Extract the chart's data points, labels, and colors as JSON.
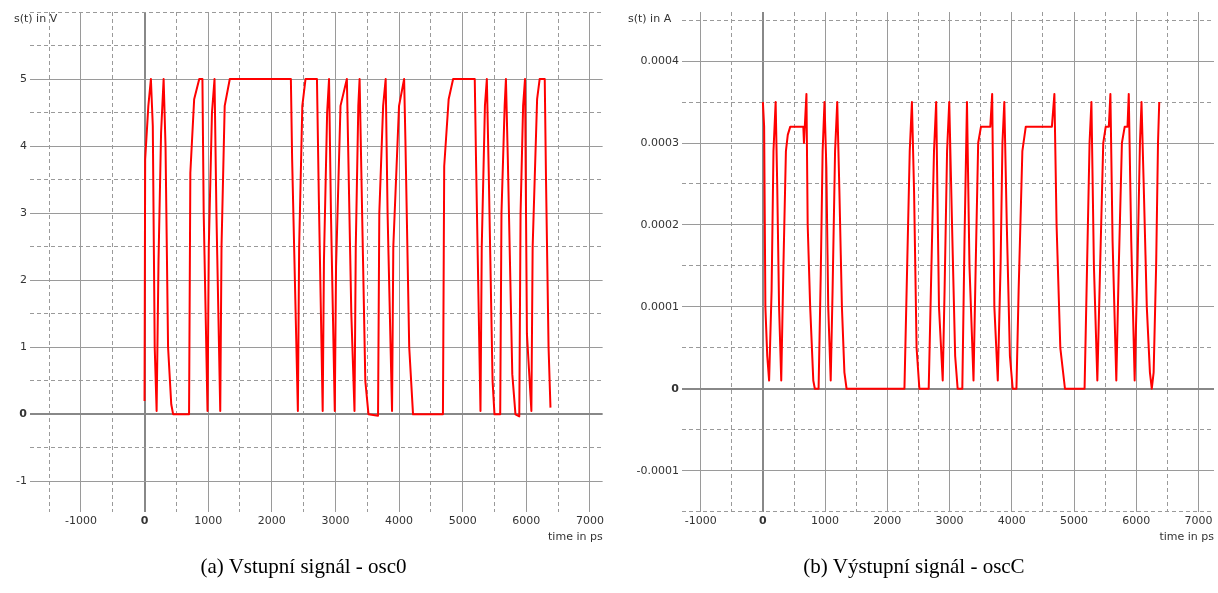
{
  "chart_data": [
    {
      "type": "line",
      "ylabel": "s(t) in V",
      "xlabel": "time in ps",
      "annotations": [
        "(a) Vstupní signál - osc0"
      ],
      "grid": true,
      "legend": false,
      "marker": "none",
      "line_style": "solid",
      "xlim": [
        -1800,
        7200
      ],
      "xticks": [
        {
          "value": -1500,
          "label": null
        },
        -1000,
        {
          "value": -500,
          "label": null
        },
        0,
        {
          "value": 500,
          "label": null
        },
        1000,
        {
          "value": 1500,
          "label": null
        },
        2000,
        {
          "value": 2500,
          "label": null
        },
        3000,
        {
          "value": 3500,
          "label": null
        },
        4000,
        {
          "value": 4500,
          "label": null
        },
        5000,
        {
          "value": 5500,
          "label": null
        },
        6000,
        {
          "value": 6500,
          "label": null
        },
        7000
      ],
      "ylim": [
        -1.45,
        6
      ],
      "yticks": [
        -1,
        {
          "value": -0.5,
          "label": null
        },
        0,
        {
          "value": 0.5,
          "label": null
        },
        1,
        {
          "value": 1.5,
          "label": null
        },
        2,
        {
          "value": 2.5,
          "label": null
        },
        3,
        {
          "value": 3.5,
          "label": null
        },
        4,
        {
          "value": 4.5,
          "label": null
        },
        5,
        {
          "value": 5.5,
          "label": null
        },
        {
          "value": 6,
          "label": null
        }
      ],
      "series": [
        {
          "color": "#ff0000",
          "x": [
            0,
            10,
            60,
            100,
            130,
            160,
            190,
            220,
            260,
            300,
            330,
            370,
            420,
            450,
            700,
            720,
            780,
            860,
            910,
            930,
            990,
            1010,
            1060,
            1100,
            1130,
            1190,
            1210,
            1260,
            1340,
            2300,
            2320,
            2410,
            2430,
            2480,
            2530,
            2710,
            2740,
            2800,
            2820,
            2870,
            2900,
            2930,
            2990,
            3010,
            3080,
            3180,
            3200,
            3250,
            3300,
            3320,
            3360,
            3380,
            3410,
            3470,
            3520,
            3670,
            3690,
            3750,
            3790,
            3820,
            3890,
            3910,
            4000,
            4080,
            4100,
            4160,
            4220,
            4690,
            4710,
            4780,
            4850,
            5190,
            5210,
            5280,
            5300,
            5350,
            5380,
            5410,
            5470,
            5500,
            5590,
            5610,
            5660,
            5680,
            5710,
            5780,
            5830,
            5890,
            5910,
            5950,
            5980,
            6010,
            6080,
            6100,
            6170,
            6210,
            6290,
            6310,
            6350,
            6380
          ],
          "values": [
            0.2,
            3.8,
            4.6,
            5,
            4.3,
            1,
            0.05,
            2.3,
            4.2,
            5,
            4,
            1,
            0.15,
            0,
            0,
            3.6,
            4.7,
            5,
            5,
            3,
            0.05,
            2.5,
            4.5,
            5,
            3,
            0.05,
            2.5,
            4.6,
            5,
            5,
            3.8,
            0.05,
            2.5,
            4.6,
            5,
            5,
            3.2,
            0.05,
            2.3,
            4.5,
            5,
            3,
            0.05,
            2.2,
            4.6,
            5,
            4,
            1.5,
            0.05,
            2.5,
            4.6,
            5,
            3.5,
            0.5,
            0,
            -0.02,
            3,
            4.6,
            5,
            3,
            0.05,
            2.5,
            4.6,
            5,
            4.1,
            1,
            0,
            0,
            3.7,
            4.7,
            5,
            5,
            3.8,
            0.05,
            2.5,
            4.6,
            5,
            3.6,
            0.5,
            0,
            0,
            3,
            4.6,
            5,
            3.8,
            0.6,
            0,
            -0.03,
            3,
            4.6,
            5,
            1.2,
            0.05,
            2.5,
            4.7,
            5,
            5,
            3.5,
            1,
            0.1
          ]
        }
      ]
    },
    {
      "type": "line",
      "ylabel": "s(t) in A",
      "xlabel": "time in ps",
      "annotations": [
        "(b) Výstupní signál - oscC"
      ],
      "grid": true,
      "legend": false,
      "marker": "none",
      "line_style": "solid",
      "xlim": [
        -1300,
        7250
      ],
      "xticks": [
        -1000,
        {
          "value": -500,
          "label": null
        },
        0,
        {
          "value": 500,
          "label": null
        },
        1000,
        {
          "value": 1500,
          "label": null
        },
        2000,
        {
          "value": 2500,
          "label": null
        },
        3000,
        {
          "value": 3500,
          "label": null
        },
        4000,
        {
          "value": 4500,
          "label": null
        },
        5000,
        {
          "value": 5500,
          "label": null
        },
        6000,
        {
          "value": 6500,
          "label": null
        },
        7000
      ],
      "ylim": [
        -0.00015,
        0.00046
      ],
      "yticks": [
        {
          "value": -0.00015,
          "label": null
        },
        -0.0001,
        {
          "value": -5e-05,
          "label": null
        },
        0,
        {
          "value": 5e-05,
          "label": null
        },
        0.0001,
        {
          "value": 0.00015,
          "label": null
        },
        0.0002,
        {
          "value": 0.00025,
          "label": null
        },
        0.0003,
        {
          "value": 0.00035,
          "label": null
        },
        0.0004,
        {
          "value": 0.00045,
          "label": null
        }
      ],
      "series": [
        {
          "color": "#ff0000",
          "x": [
            0,
            20,
            40,
            70,
            100,
            140,
            170,
            205,
            230,
            260,
            295,
            330,
            370,
            400,
            440,
            650,
            660,
            700,
            720,
            760,
            810,
            835,
            895,
            930,
            960,
            990,
            1020,
            1050,
            1090,
            1120,
            1160,
            1195,
            1230,
            1270,
            1310,
            1345,
            2275,
            2310,
            2360,
            2395,
            2430,
            2470,
            2515,
            2665,
            2700,
            2750,
            2785,
            2830,
            2890,
            2920,
            2960,
            2995,
            3040,
            3090,
            3130,
            3205,
            3240,
            3280,
            3320,
            3385,
            3420,
            3460,
            3505,
            3655,
            3685,
            3720,
            3775,
            3820,
            3850,
            3880,
            3920,
            3970,
            4015,
            4075,
            4110,
            4170,
            4225,
            4645,
            4685,
            4720,
            4780,
            4855,
            5170,
            5210,
            5250,
            5280,
            5320,
            5375,
            5420,
            5470,
            5510,
            5560,
            5585,
            5620,
            5680,
            5720,
            5770,
            5815,
            5860,
            5880,
            5920,
            5975,
            6020,
            6060,
            6085,
            6120,
            6170,
            6220,
            6250,
            6280,
            6320,
            6350,
            6370
          ],
          "values": [
            0.00035,
            0.00032,
            0.0001,
            4e-05,
            1e-05,
            0.00012,
            0.00029,
            0.00035,
            0.00025,
            0.0001,
            1e-05,
            0.00015,
            0.00029,
            0.00031,
            0.00032,
            0.00032,
            0.0003,
            0.00036,
            0.0002,
            0.0001,
            1e-05,
            0,
            0,
            0.00014,
            0.00029,
            0.00035,
            0.00027,
            0.0001,
            1e-05,
            0.00012,
            0.00029,
            0.00035,
            0.00024,
            0.0001,
            2e-05,
            0,
            0,
            0.00012,
            0.00029,
            0.00035,
            0.00024,
            5e-05,
            0,
            0,
            0.00012,
            0.00029,
            0.00035,
            0.0001,
            1e-05,
            0.00012,
            0.00029,
            0.00035,
            0.0002,
            4e-05,
            0,
            0,
            0.00018,
            0.00035,
            0.00015,
            1e-05,
            0.00015,
            0.0003,
            0.00032,
            0.00032,
            0.00036,
            0.0001,
            1e-05,
            0.00015,
            0.0003,
            0.00035,
            0.0002,
            4e-05,
            0,
            0,
            0.00012,
            0.00029,
            0.00032,
            0.00032,
            0.00036,
            0.0002,
            5e-05,
            0,
            0,
            0.00015,
            0.0003,
            0.00035,
            0.00015,
            1e-05,
            0.00015,
            0.0003,
            0.00032,
            0.00032,
            0.00036,
            0.00018,
            1e-05,
            0.00015,
            0.0003,
            0.00032,
            0.00032,
            0.00036,
            0.00018,
            1e-05,
            0.00015,
            0.0003,
            0.00035,
            0.00025,
            0.0001,
            2e-05,
            0,
            2e-05,
            0.00015,
            0.0003,
            0.00035
          ]
        }
      ]
    }
  ]
}
